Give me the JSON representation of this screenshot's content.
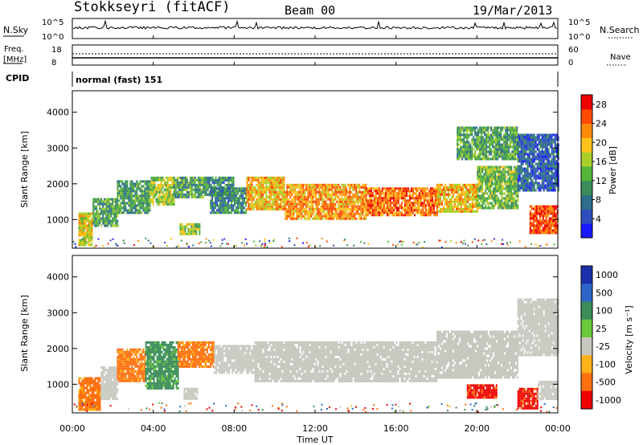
{
  "header": {
    "station": "Stokkseyri (fitACF)",
    "beam": "Beam 00",
    "date": "19/Mar/2013"
  },
  "panels": {
    "nsky_label": "N.Sky",
    "nsky_ticks": [
      "10^5",
      "10^0"
    ],
    "nsearch_label": "N.Search",
    "nsearch_ticks": [
      "10^5",
      "10^0"
    ],
    "freq_label": "Freq.",
    "freq_unit": "[MHz]",
    "freq_ticks": [
      "18",
      "8"
    ],
    "nave_label": "Nave",
    "nave_ticks": [
      "60",
      "0"
    ],
    "cpid_label": "CPID",
    "cpid_value": "normal (fast) 151"
  },
  "chart_data": [
    {
      "type": "heatmap",
      "name": "power",
      "xlabel": "Time UT",
      "ylabel": "Slant Range [km]",
      "x_ticks": [
        "00:00",
        "04:00",
        "08:00",
        "12:00",
        "16:00",
        "20:00",
        "00:00"
      ],
      "y_ticks": [
        1000,
        2000,
        3000,
        4000
      ],
      "ylim": [
        200,
        4600
      ],
      "xlim_hours": [
        0,
        24
      ],
      "colorbar": {
        "label": "Power [dB]",
        "ticks": [
          4,
          8,
          12,
          16,
          20,
          24,
          28
        ],
        "range": [
          0,
          30
        ],
        "colors": [
          "#1a1aff",
          "#2f4fbf",
          "#2e6e8c",
          "#3a8c5a",
          "#55b53a",
          "#a8cf2a",
          "#ffc21a",
          "#ff8a0a",
          "#ff4a00",
          "#ee0000"
        ]
      },
      "regions": [
        {
          "t": [
            0.3,
            1.0
          ],
          "r": [
            300,
            1200
          ],
          "p": 18
        },
        {
          "t": [
            1.0,
            2.2
          ],
          "r": [
            800,
            1600
          ],
          "p": 12
        },
        {
          "t": [
            2.2,
            3.8
          ],
          "r": [
            1200,
            2100
          ],
          "p": 11
        },
        {
          "t": [
            3.8,
            5.0
          ],
          "r": [
            1400,
            2200
          ],
          "p": 16
        },
        {
          "t": [
            5.0,
            6.5
          ],
          "r": [
            1600,
            2200
          ],
          "p": 12
        },
        {
          "t": [
            5.3,
            6.3
          ],
          "r": [
            600,
            900
          ],
          "p": 16
        },
        {
          "t": [
            6.5,
            8.0
          ],
          "r": [
            1700,
            2200
          ],
          "p": 10
        },
        {
          "t": [
            6.8,
            8.6
          ],
          "r": [
            1200,
            1900
          ],
          "p": 9
        },
        {
          "t": [
            8.6,
            10.5
          ],
          "r": [
            1300,
            2200
          ],
          "p": 20
        },
        {
          "t": [
            10.5,
            14.5
          ],
          "r": [
            1000,
            2000
          ],
          "p": 22
        },
        {
          "t": [
            14.5,
            18.0
          ],
          "r": [
            1100,
            1900
          ],
          "p": 24
        },
        {
          "t": [
            18.0,
            20.0
          ],
          "r": [
            1200,
            2000
          ],
          "p": 20
        },
        {
          "t": [
            20.0,
            22.0
          ],
          "r": [
            1300,
            2500
          ],
          "p": 14
        },
        {
          "t": [
            22.0,
            24.0
          ],
          "r": [
            1800,
            3400
          ],
          "p": 6
        },
        {
          "t": [
            22.6,
            24.0
          ],
          "r": [
            600,
            1400
          ],
          "p": 26
        },
        {
          "t": [
            19.0,
            22.0
          ],
          "r": [
            2700,
            3600
          ],
          "p": 12
        }
      ]
    },
    {
      "type": "heatmap",
      "name": "velocity",
      "xlabel": "Time UT",
      "ylabel": "Slant Range [km]",
      "x_ticks": [
        "00:00",
        "04:00",
        "08:00",
        "12:00",
        "16:00",
        "20:00",
        "00:00"
      ],
      "y_ticks": [
        1000,
        2000,
        3000,
        4000
      ],
      "ylim": [
        200,
        4600
      ],
      "xlim_hours": [
        0,
        24
      ],
      "colorbar": {
        "label": "Velocity [m s⁻¹]",
        "ticks": [
          "1000",
          "500",
          "100",
          "25",
          "-25",
          "-100",
          "-500",
          "-1000"
        ],
        "colors": [
          "#1a2faa",
          "#2b66c8",
          "#3a8c5a",
          "#6ac83a",
          "#c8c8c0",
          "#ffb21a",
          "#ff7010",
          "#ee0000"
        ]
      },
      "regions": [
        {
          "t": [
            0.3,
            1.4
          ],
          "r": [
            300,
            1200
          ],
          "v": -100
        },
        {
          "t": [
            1.4,
            2.2
          ],
          "r": [
            600,
            1500
          ],
          "v": 0
        },
        {
          "t": [
            2.2,
            3.6
          ],
          "r": [
            1100,
            2000
          ],
          "v": -100
        },
        {
          "t": [
            3.6,
            5.2
          ],
          "r": [
            900,
            2200
          ],
          "v": 100
        },
        {
          "t": [
            5.2,
            7.0
          ],
          "r": [
            1500,
            2200
          ],
          "v": -100
        },
        {
          "t": [
            5.5,
            6.2
          ],
          "r": [
            600,
            900
          ],
          "v": 0
        },
        {
          "t": [
            7.0,
            9.0
          ],
          "r": [
            1300,
            2100
          ],
          "v": 0
        },
        {
          "t": [
            9.0,
            18.0
          ],
          "r": [
            1100,
            2200
          ],
          "v": 0
        },
        {
          "t": [
            18.0,
            22.0
          ],
          "r": [
            1200,
            2500
          ],
          "v": 0
        },
        {
          "t": [
            19.5,
            21.0
          ],
          "r": [
            600,
            1000
          ],
          "v": -500
        },
        {
          "t": [
            22.0,
            23.0
          ],
          "r": [
            300,
            900
          ],
          "v": -500
        },
        {
          "t": [
            22.0,
            24.0
          ],
          "r": [
            1800,
            3400
          ],
          "v": 0
        },
        {
          "t": [
            23.0,
            24.0
          ],
          "r": [
            600,
            1100
          ],
          "v": 0
        }
      ]
    }
  ]
}
